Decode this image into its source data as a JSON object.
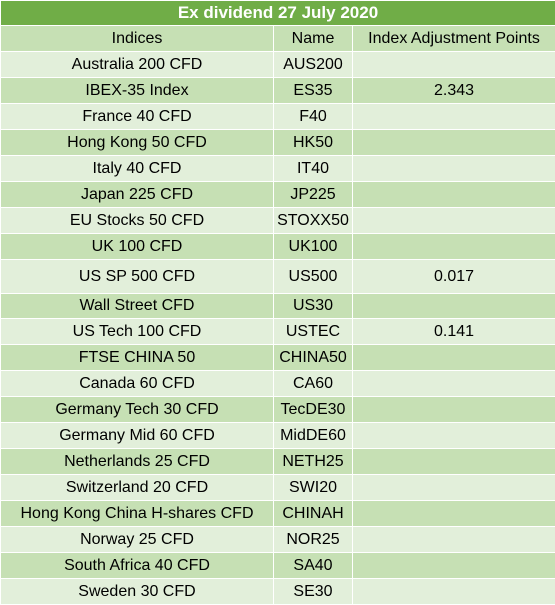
{
  "title": "Ex dividend 27 July 2020",
  "columns": [
    "Indices",
    "Name",
    "Index Adjustment Points"
  ],
  "rows": [
    {
      "index": "Australia 200 CFD",
      "name": "AUS200",
      "points": ""
    },
    {
      "index": "IBEX-35 Index",
      "name": "ES35",
      "points": "2.343"
    },
    {
      "index": "France 40 CFD",
      "name": "F40",
      "points": ""
    },
    {
      "index": "Hong Kong 50 CFD",
      "name": "HK50",
      "points": ""
    },
    {
      "index": "Italy 40 CFD",
      "name": "IT40",
      "points": ""
    },
    {
      "index": "Japan 225 CFD",
      "name": "JP225",
      "points": ""
    },
    {
      "index": "EU Stocks 50 CFD",
      "name": "STOXX50",
      "points": ""
    },
    {
      "index": "UK 100 CFD",
      "name": "UK100",
      "points": ""
    },
    {
      "index": "US SP 500 CFD",
      "name": "US500",
      "points": "0.017"
    },
    {
      "index": "Wall Street CFD",
      "name": "US30",
      "points": ""
    },
    {
      "index": "US Tech 100 CFD",
      "name": "USTEC",
      "points": "0.141"
    },
    {
      "index": "FTSE CHINA 50",
      "name": "CHINA50",
      "points": ""
    },
    {
      "index": "Canada 60 CFD",
      "name": "CA60",
      "points": ""
    },
    {
      "index": "Germany Tech 30 CFD",
      "name": "TecDE30",
      "points": ""
    },
    {
      "index": "Germany Mid 60 CFD",
      "name": "MidDE60",
      "points": ""
    },
    {
      "index": "Netherlands 25 CFD",
      "name": "NETH25",
      "points": ""
    },
    {
      "index": "Switzerland 20 CFD",
      "name": "SWI20",
      "points": ""
    },
    {
      "index": "Hong Kong China H-shares CFD",
      "name": "CHINAH",
      "points": ""
    },
    {
      "index": "Norway 25 CFD",
      "name": "NOR25",
      "points": ""
    },
    {
      "index": "South Africa 40 CFD",
      "name": "SA40",
      "points": ""
    },
    {
      "index": "Sweden 30 CFD",
      "name": "SE30",
      "points": ""
    }
  ],
  "colors": {
    "title_bg": "#70ad47",
    "header_bg": "#c6e0b4",
    "row_light": "#e2efda",
    "row_dark": "#c6e0b4"
  }
}
